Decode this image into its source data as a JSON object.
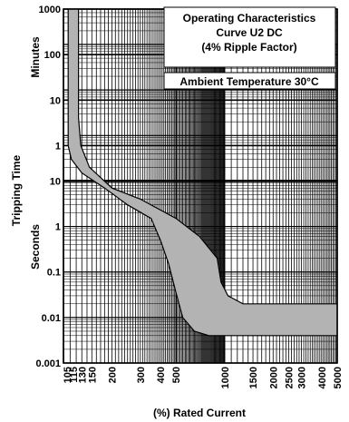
{
  "chart_data": {
    "type": "area",
    "title_lines": [
      "Operating Characteristics",
      "Curve U2 DC",
      "(4% Ripple Factor)"
    ],
    "annotation": "Ambient Temperature 30°C",
    "xlabel": "(%) Rated Current",
    "ylabel": "Tripping Time",
    "y_unit_labels": [
      "Minutes",
      "Seconds"
    ],
    "x_scale": "log",
    "y_scale": "log",
    "grid": true,
    "x_ticks": [
      105,
      115,
      130,
      150,
      200,
      300,
      400,
      500,
      1000,
      1500,
      2000,
      2500,
      3000,
      4000,
      5000
    ],
    "x_tick_labels": [
      "105",
      "115",
      "130",
      "150",
      "200",
      "300",
      "400",
      "500",
      "1000",
      "1500",
      "2000",
      "2500",
      "3000",
      "4000",
      "5000"
    ],
    "y_ticks": [
      {
        "label": "1000",
        "seconds": 60000
      },
      {
        "label": "100",
        "seconds": 6000
      },
      {
        "label": "10",
        "seconds": 600
      },
      {
        "label": "1",
        "seconds": 60
      },
      {
        "label": "10",
        "seconds": 10
      },
      {
        "label": "1",
        "seconds": 1
      },
      {
        "label": "0.1",
        "seconds": 0.1
      },
      {
        "label": "0.01",
        "seconds": 0.01
      },
      {
        "label": "0.001",
        "seconds": 0.001
      }
    ],
    "series": [
      {
        "role": "upper",
        "points": [
          {
            "x": 124,
            "y_seconds": 60000
          },
          {
            "x": 124,
            "y_seconds": 250
          },
          {
            "x": 128,
            "y_seconds": 60
          },
          {
            "x": 145,
            "y_seconds": 20
          },
          {
            "x": 200,
            "y_seconds": 7
          },
          {
            "x": 300,
            "y_seconds": 4
          },
          {
            "x": 500,
            "y_seconds": 1.5
          },
          {
            "x": 700,
            "y_seconds": 0.6
          },
          {
            "x": 900,
            "y_seconds": 0.2
          },
          {
            "x": 950,
            "y_seconds": 0.06
          },
          {
            "x": 1050,
            "y_seconds": 0.03
          },
          {
            "x": 1300,
            "y_seconds": 0.02
          },
          {
            "x": 5000,
            "y_seconds": 0.02
          }
        ]
      },
      {
        "role": "lower",
        "points": [
          {
            "x": 107,
            "y_seconds": 60000
          },
          {
            "x": 107,
            "y_seconds": 60
          },
          {
            "x": 112,
            "y_seconds": 30
          },
          {
            "x": 130,
            "y_seconds": 15
          },
          {
            "x": 180,
            "y_seconds": 7
          },
          {
            "x": 250,
            "y_seconds": 3
          },
          {
            "x": 350,
            "y_seconds": 1.5
          },
          {
            "x": 400,
            "y_seconds": 0.5
          },
          {
            "x": 450,
            "y_seconds": 0.15
          },
          {
            "x": 500,
            "y_seconds": 0.035
          },
          {
            "x": 550,
            "y_seconds": 0.01
          },
          {
            "x": 650,
            "y_seconds": 0.005
          },
          {
            "x": 800,
            "y_seconds": 0.004
          },
          {
            "x": 5000,
            "y_seconds": 0.004
          }
        ]
      }
    ],
    "colors": {
      "band_fill": "#b3b3b3",
      "band_stroke": "#000000",
      "grid": "#000000",
      "background": "#ffffff"
    }
  }
}
